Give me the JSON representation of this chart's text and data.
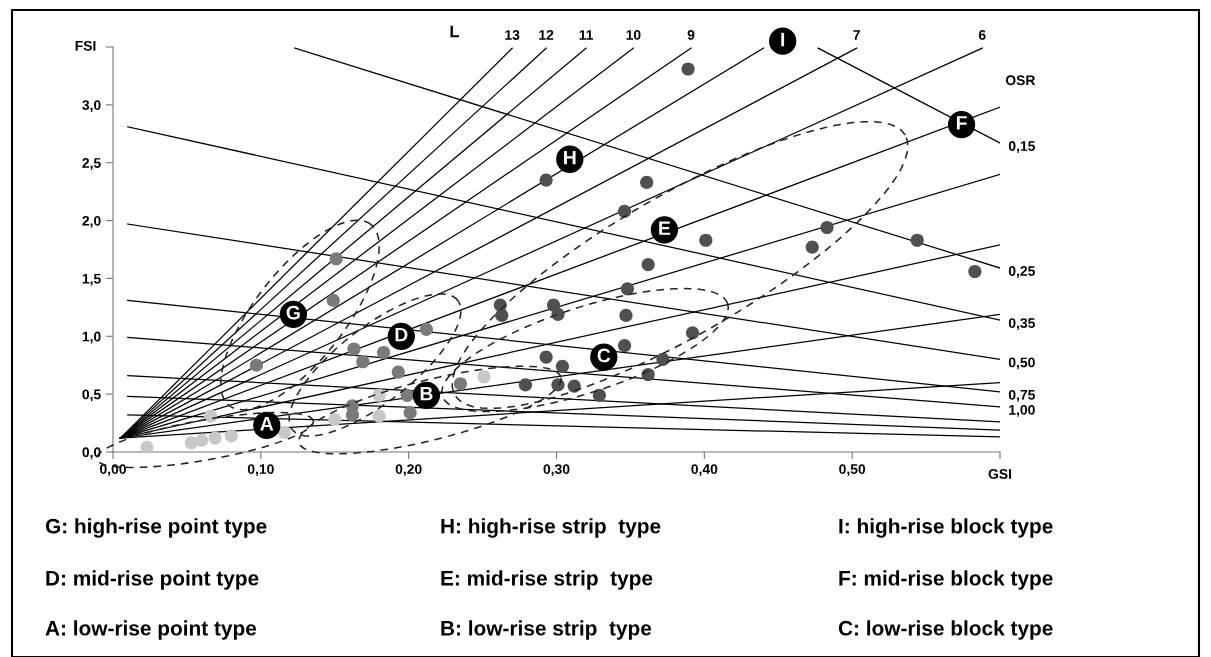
{
  "chart_data": {
    "type": "scatter",
    "xlabel": "GSI",
    "ylabel": "FSI",
    "xlim": [
      0,
      0.6
    ],
    "ylim": [
      0,
      3.5
    ],
    "xticks": [
      {
        "value": 0,
        "label": "0,00"
      },
      {
        "value": 0.1,
        "label": "0,10"
      },
      {
        "value": 0.2,
        "label": "0,20"
      },
      {
        "value": 0.3,
        "label": "0,30"
      },
      {
        "value": 0.4,
        "label": "0,40"
      },
      {
        "value": 0.5,
        "label": "0,50"
      },
      {
        "value": 0.6,
        "label": null
      }
    ],
    "yticks": [
      {
        "value": 0,
        "label": "0,0"
      },
      {
        "value": 0.5,
        "label": "0,5"
      },
      {
        "value": 1,
        "label": "1,0"
      },
      {
        "value": 1.5,
        "label": "1,5"
      },
      {
        "value": 2,
        "label": "2,0"
      },
      {
        "value": 2.5,
        "label": "2,5"
      },
      {
        "value": 3,
        "label": "3,0"
      },
      {
        "value": 3.5,
        "label": null
      }
    ],
    "grid": false,
    "legend": false,
    "series": [
      {
        "type": "line",
        "name": "13",
        "color": "#000000",
        "marker": "none",
        "x": [
          0.005,
          0.27
        ],
        "values": [
          0.12,
          3.49
        ]
      },
      {
        "type": "line",
        "name": "12",
        "color": "#000000",
        "marker": "none",
        "x": [
          0.005,
          0.293
        ],
        "values": [
          0.12,
          3.49
        ]
      },
      {
        "type": "line",
        "name": "11",
        "color": "#000000",
        "marker": "none",
        "x": [
          0.005,
          0.32
        ],
        "values": [
          0.12,
          3.49
        ]
      },
      {
        "type": "line",
        "name": "10",
        "color": "#000000",
        "marker": "none",
        "x": [
          0.005,
          0.352
        ],
        "values": [
          0.12,
          3.49
        ]
      },
      {
        "type": "line",
        "name": "9",
        "color": "#000000",
        "marker": "none",
        "x": [
          0.005,
          0.391
        ],
        "values": [
          0.12,
          3.49
        ]
      },
      {
        "type": "line",
        "color": "#000000",
        "marker": "none",
        "x": [
          0.005,
          0.44
        ],
        "values": [
          0.12,
          3.49
        ]
      },
      {
        "type": "line",
        "name": "7",
        "color": "#000000",
        "marker": "none",
        "x": [
          0.005,
          0.503
        ],
        "values": [
          0.12,
          3.49
        ]
      },
      {
        "type": "line",
        "name": "6",
        "color": "#000000",
        "marker": "none",
        "x": [
          0.005,
          0.588
        ],
        "values": [
          0.12,
          3.49
        ]
      },
      {
        "type": "line",
        "color": "#000000",
        "marker": "none",
        "x": [
          0.005,
          0.6
        ],
        "values": [
          0.12,
          2.98
        ]
      },
      {
        "type": "line",
        "color": "#000000",
        "marker": "none",
        "x": [
          0.005,
          0.6
        ],
        "values": [
          0.12,
          2.4
        ]
      },
      {
        "type": "line",
        "color": "#000000",
        "marker": "none",
        "x": [
          0.005,
          0.6
        ],
        "values": [
          0.12,
          1.79
        ]
      },
      {
        "type": "line",
        "color": "#000000",
        "marker": "none",
        "x": [
          0.005,
          0.6
        ],
        "values": [
          0.12,
          1.19
        ]
      },
      {
        "type": "line",
        "color": "#000000",
        "marker": "none",
        "x": [
          0.005,
          0.6
        ],
        "values": [
          0.12,
          0.6
        ]
      },
      {
        "type": "line",
        "name": "0,15",
        "color": "#000000",
        "marker": "none",
        "x": [
          0.477,
          0.6
        ],
        "values": [
          3.49,
          2.67
        ]
      },
      {
        "type": "line",
        "name": "0,25",
        "color": "#000000",
        "marker": "none",
        "x": [
          0.123,
          0.6
        ],
        "values": [
          3.49,
          1.59
        ]
      },
      {
        "type": "line",
        "name": "0,35",
        "color": "#000000",
        "marker": "none",
        "x": [
          0.01,
          0.6
        ],
        "values": [
          2.81,
          1.14
        ]
      },
      {
        "type": "line",
        "name": "0,50",
        "color": "#000000",
        "marker": "none",
        "x": [
          0.01,
          0.6
        ],
        "values": [
          1.97,
          0.8
        ]
      },
      {
        "type": "line",
        "name": "0,75",
        "color": "#000000",
        "marker": "none",
        "x": [
          0.01,
          0.6
        ],
        "values": [
          1.31,
          0.52
        ]
      },
      {
        "type": "line",
        "name": "1,00",
        "color": "#000000",
        "marker": "none",
        "x": [
          0.01,
          0.6
        ],
        "values": [
          0.99,
          0.39
        ]
      },
      {
        "type": "line",
        "color": "#000000",
        "marker": "none",
        "x": [
          0.01,
          0.6
        ],
        "values": [
          0.66,
          0.26
        ]
      },
      {
        "type": "line",
        "color": "#000000",
        "marker": "none",
        "x": [
          0.01,
          0.6
        ],
        "values": [
          0.48,
          0.19
        ]
      },
      {
        "type": "line",
        "color": "#000000",
        "marker": "none",
        "x": [
          0.01,
          0.6
        ],
        "values": [
          0.32,
          0.13
        ]
      },
      {
        "color": "#c8c8c8",
        "marker": "circle",
        "x": [
          0.023,
          0.053,
          0.06,
          0.069,
          0.08,
          0.066,
          0.116,
          0.15,
          0.18,
          0.18,
          0.251
        ],
        "values": [
          0.04,
          0.08,
          0.1,
          0.12,
          0.14,
          0.31,
          0.17,
          0.28,
          0.31,
          0.49,
          0.65
        ]
      },
      {
        "color": "#7a7a7a",
        "marker": "circle",
        "x": [
          0.151,
          0.149,
          0.097,
          0.163,
          0.169,
          0.183,
          0.193,
          0.212,
          0.162,
          0.162,
          0.199,
          0.201,
          0.235
        ],
        "values": [
          1.67,
          1.31,
          0.75,
          0.89,
          0.78,
          0.86,
          0.69,
          1.06,
          0.4,
          0.32,
          0.49,
          0.34,
          0.59
        ]
      },
      {
        "color": "#505050",
        "marker": "circle",
        "x": [
          0.262,
          0.263,
          0.298,
          0.301,
          0.293,
          0.304,
          0.279,
          0.301,
          0.312,
          0.329,
          0.346,
          0.348,
          0.347,
          0.362,
          0.372,
          0.362,
          0.392,
          0.401,
          0.483,
          0.473,
          0.544,
          0.583,
          0.389,
          0.361,
          0.346,
          0.293
        ],
        "values": [
          1.27,
          1.18,
          1.27,
          1.19,
          0.82,
          0.74,
          0.58,
          0.58,
          0.57,
          0.49,
          0.92,
          1.41,
          1.18,
          1.62,
          0.8,
          0.67,
          1.03,
          1.83,
          1.94,
          1.77,
          1.83,
          1.56,
          3.31,
          2.33,
          2.08,
          2.35
        ]
      }
    ],
    "annotations": [
      {
        "text": "A",
        "x": 0.104,
        "y": 0.23
      },
      {
        "text": "B",
        "x": 0.212,
        "y": 0.49
      },
      {
        "text": "C",
        "x": 0.332,
        "y": 0.82
      },
      {
        "text": "D",
        "x": 0.195,
        "y": 1.0
      },
      {
        "text": "E",
        "x": 0.373,
        "y": 1.92
      },
      {
        "text": "F",
        "x": 0.574,
        "y": 2.83
      },
      {
        "text": "G",
        "x": 0.122,
        "y": 1.19
      },
      {
        "text": "H",
        "x": 0.309,
        "y": 2.53
      },
      {
        "text": "I",
        "x": 0.453,
        "y": 3.55
      },
      "L",
      "OSR",
      "G: high-rise point type",
      "H: high-rise strip  type",
      "I: high-rise block type",
      "D: mid-rise point type",
      "E: mid-rise strip  type",
      "F: mid-rise block type",
      "A: low-rise point type",
      "B: low-rise strip  type",
      "C: low-rise block type"
    ]
  }
}
